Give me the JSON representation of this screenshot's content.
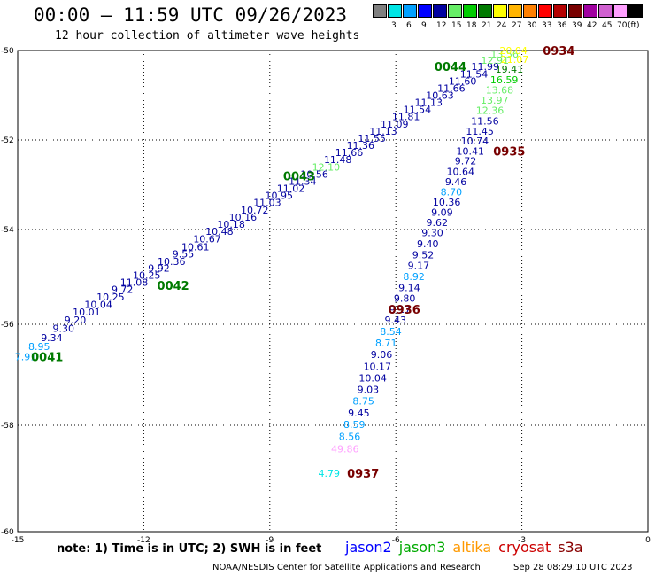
{
  "header": {
    "title": "00:00 – 11:59 UTC 09/26/2023",
    "subtitle": "12 hour collection of altimeter wave heights"
  },
  "legend": {
    "unit": "(ft)",
    "bins": [
      {
        "label": "",
        "color": "#808080"
      },
      {
        "label": "3",
        "color": "#00e5e5"
      },
      {
        "label": "6",
        "color": "#00a0ff"
      },
      {
        "label": "9",
        "color": "#0000ff"
      },
      {
        "label": "12",
        "color": "#0000a0"
      },
      {
        "label": "15",
        "color": "#66ee66"
      },
      {
        "label": "18",
        "color": "#00cc00"
      },
      {
        "label": "21",
        "color": "#007a00"
      },
      {
        "label": "24",
        "color": "#ffff00"
      },
      {
        "label": "27",
        "color": "#ffb400"
      },
      {
        "label": "30",
        "color": "#ff8000"
      },
      {
        "label": "33",
        "color": "#ff0000"
      },
      {
        "label": "36",
        "color": "#b40000"
      },
      {
        "label": "39",
        "color": "#780000"
      },
      {
        "label": "42",
        "color": "#a000a0"
      },
      {
        "label": "45",
        "color": "#d060d0"
      },
      {
        "label": "70",
        "color": "#ffa0ff"
      },
      {
        "label": "",
        "color": "#000000"
      }
    ]
  },
  "axes": {
    "x_ticks": [
      "-15",
      "-12",
      "-9",
      "-6",
      "-3",
      "0"
    ],
    "y_ticks": [
      "-50",
      "-52",
      "-54",
      "-56",
      "-58",
      "-60"
    ]
  },
  "observations": [
    {
      "text": "7.91",
      "lon": -14.81,
      "lat": -56.64,
      "color": "#00a0ff"
    },
    {
      "text": "8.95",
      "lon": -14.49,
      "lat": -56.44,
      "color": "#00a0ff"
    },
    {
      "text": "9.34",
      "lon": -14.19,
      "lat": -56.26,
      "color": "#0000a0"
    },
    {
      "text": "9.30",
      "lon": -13.91,
      "lat": -56.08,
      "color": "#0000a0"
    },
    {
      "text": "9.20",
      "lon": -13.63,
      "lat": -55.91,
      "color": "#0000a0"
    },
    {
      "text": "10.01",
      "lon": -13.36,
      "lat": -55.74,
      "color": "#0000a0"
    },
    {
      "text": "10.04",
      "lon": -13.08,
      "lat": -55.58,
      "color": "#0000a0"
    },
    {
      "text": "10.25",
      "lon": -12.79,
      "lat": -55.42,
      "color": "#0000a0"
    },
    {
      "text": "9.72",
      "lon": -12.51,
      "lat": -55.26,
      "color": "#0000a0"
    },
    {
      "text": "11.08",
      "lon": -12.23,
      "lat": -55.11,
      "color": "#0000a0"
    },
    {
      "text": "10.25",
      "lon": -11.93,
      "lat": -54.96,
      "color": "#0000a0"
    },
    {
      "text": "9.92",
      "lon": -11.64,
      "lat": -54.81,
      "color": "#0000a0"
    },
    {
      "text": "10.36",
      "lon": -11.34,
      "lat": -54.67,
      "color": "#0000a0"
    },
    {
      "text": "9.55",
      "lon": -11.06,
      "lat": -54.51,
      "color": "#0000a0"
    },
    {
      "text": "10.61",
      "lon": -10.77,
      "lat": -54.36,
      "color": "#0000a0"
    },
    {
      "text": "10.67",
      "lon": -10.49,
      "lat": -54.2,
      "color": "#0000a0"
    },
    {
      "text": "10.48",
      "lon": -10.2,
      "lat": -54.04,
      "color": "#0000a0"
    },
    {
      "text": "10.18",
      "lon": -9.92,
      "lat": -53.88,
      "color": "#0000a0"
    },
    {
      "text": "10.16",
      "lon": -9.64,
      "lat": -53.72,
      "color": "#0000a0"
    },
    {
      "text": "10.72",
      "lon": -9.36,
      "lat": -53.56,
      "color": "#0000a0"
    },
    {
      "text": "11.03",
      "lon": -9.06,
      "lat": -53.4,
      "color": "#0000a0"
    },
    {
      "text": "10.95",
      "lon": -8.78,
      "lat": -53.24,
      "color": "#0000a0"
    },
    {
      "text": "11.02",
      "lon": -8.5,
      "lat": -53.08,
      "color": "#0000a0"
    },
    {
      "text": "11.34",
      "lon": -8.22,
      "lat": -52.92,
      "color": "#0000a0"
    },
    {
      "text": "10.56",
      "lon": -7.94,
      "lat": -52.76,
      "color": "#0000a0"
    },
    {
      "text": "12.10",
      "lon": -7.66,
      "lat": -52.6,
      "color": "#66ee66"
    },
    {
      "text": "11.48",
      "lon": -7.38,
      "lat": -52.44,
      "color": "#0000a0"
    },
    {
      "text": "11.66",
      "lon": -7.11,
      "lat": -52.28,
      "color": "#0000a0"
    },
    {
      "text": "11.36",
      "lon": -6.84,
      "lat": -52.12,
      "color": "#0000a0"
    },
    {
      "text": "11.55",
      "lon": -6.57,
      "lat": -51.96,
      "color": "#0000a0"
    },
    {
      "text": "11.13",
      "lon": -6.3,
      "lat": -51.8,
      "color": "#0000a0"
    },
    {
      "text": "11.09",
      "lon": -6.03,
      "lat": -51.64,
      "color": "#0000a0"
    },
    {
      "text": "11.81",
      "lon": -5.76,
      "lat": -51.48,
      "color": "#0000a0"
    },
    {
      "text": "11.54",
      "lon": -5.49,
      "lat": -51.32,
      "color": "#0000a0"
    },
    {
      "text": "11.13",
      "lon": -5.22,
      "lat": -51.16,
      "color": "#0000a0"
    },
    {
      "text": "10.63",
      "lon": -4.95,
      "lat": -51.0,
      "color": "#0000a0"
    },
    {
      "text": "11.66",
      "lon": -4.68,
      "lat": -50.84,
      "color": "#0000a0"
    },
    {
      "text": "11.60",
      "lon": -4.41,
      "lat": -50.68,
      "color": "#0000a0"
    },
    {
      "text": "11.54",
      "lon": -4.14,
      "lat": -50.52,
      "color": "#0000a0"
    },
    {
      "text": "11.99",
      "lon": -3.87,
      "lat": -50.36,
      "color": "#0000a0"
    },
    {
      "text": "12.91",
      "lon": -3.64,
      "lat": -50.22,
      "color": "#66ee66"
    },
    {
      "text": "13.56",
      "lon": -3.41,
      "lat": -50.08,
      "color": "#66ee66"
    },
    {
      "text": "20.04",
      "lon": -3.2,
      "lat": -49.97,
      "color": "#ffff00"
    },
    {
      "text": "21.07",
      "lon": -3.17,
      "lat": -50.2,
      "color": "#ffff00"
    },
    {
      "text": "19.41",
      "lon": -3.3,
      "lat": -50.42,
      "color": "#007a00"
    },
    {
      "text": "16.59",
      "lon": -3.42,
      "lat": -50.65,
      "color": "#00cc00"
    },
    {
      "text": "13.68",
      "lon": -3.53,
      "lat": -50.88,
      "color": "#66ee66"
    },
    {
      "text": "13.97",
      "lon": -3.65,
      "lat": -51.11,
      "color": "#66ee66"
    },
    {
      "text": "12.36",
      "lon": -3.76,
      "lat": -51.34,
      "color": "#66ee66"
    },
    {
      "text": "11.56",
      "lon": -3.88,
      "lat": -51.57,
      "color": "#0000a0"
    },
    {
      "text": "11.45",
      "lon": -4.0,
      "lat": -51.8,
      "color": "#0000a0"
    },
    {
      "text": "10.74",
      "lon": -4.12,
      "lat": -52.02,
      "color": "#0000a0"
    },
    {
      "text": "10.41",
      "lon": -4.23,
      "lat": -52.25,
      "color": "#0000a0"
    },
    {
      "text": "9.72",
      "lon": -4.34,
      "lat": -52.47,
      "color": "#0000a0"
    },
    {
      "text": "10.64",
      "lon": -4.46,
      "lat": -52.7,
      "color": "#0000a0"
    },
    {
      "text": "9.46",
      "lon": -4.57,
      "lat": -52.93,
      "color": "#0000a0"
    },
    {
      "text": "8.70",
      "lon": -4.68,
      "lat": -53.16,
      "color": "#00a0ff"
    },
    {
      "text": "10.36",
      "lon": -4.79,
      "lat": -53.39,
      "color": "#0000a0"
    },
    {
      "text": "9.09",
      "lon": -4.9,
      "lat": -53.61,
      "color": "#0000a0"
    },
    {
      "text": "9.62",
      "lon": -5.02,
      "lat": -53.84,
      "color": "#0000a0"
    },
    {
      "text": "9.30",
      "lon": -5.13,
      "lat": -54.07,
      "color": "#0000a0"
    },
    {
      "text": "9.40",
      "lon": -5.24,
      "lat": -54.3,
      "color": "#0000a0"
    },
    {
      "text": "9.52",
      "lon": -5.35,
      "lat": -54.53,
      "color": "#0000a0"
    },
    {
      "text": "9.17",
      "lon": -5.46,
      "lat": -54.76,
      "color": "#0000a0"
    },
    {
      "text": "8.92",
      "lon": -5.57,
      "lat": -54.99,
      "color": "#00a0ff"
    },
    {
      "text": "9.14",
      "lon": -5.68,
      "lat": -55.22,
      "color": "#0000a0"
    },
    {
      "text": "9.80",
      "lon": -5.79,
      "lat": -55.45,
      "color": "#0000a0"
    },
    {
      "text": "9.17",
      "lon": -5.9,
      "lat": -55.68,
      "color": "#0000a0"
    },
    {
      "text": "9.43",
      "lon": -6.01,
      "lat": -55.91,
      "color": "#0000a0"
    },
    {
      "text": "8.54",
      "lon": -6.12,
      "lat": -56.14,
      "color": "#00a0ff"
    },
    {
      "text": "8.71",
      "lon": -6.23,
      "lat": -56.37,
      "color": "#00a0ff"
    },
    {
      "text": "9.06",
      "lon": -6.34,
      "lat": -56.6,
      "color": "#0000a0"
    },
    {
      "text": "10.17",
      "lon": -6.44,
      "lat": -56.83,
      "color": "#0000a0"
    },
    {
      "text": "10.04",
      "lon": -6.55,
      "lat": -57.06,
      "color": "#0000a0"
    },
    {
      "text": "9.03",
      "lon": -6.66,
      "lat": -57.29,
      "color": "#0000a0"
    },
    {
      "text": "8.75",
      "lon": -6.77,
      "lat": -57.52,
      "color": "#00a0ff"
    },
    {
      "text": "9.45",
      "lon": -6.88,
      "lat": -57.75,
      "color": "#0000a0"
    },
    {
      "text": "8.59",
      "lon": -6.99,
      "lat": -57.98,
      "color": "#00a0ff"
    },
    {
      "text": "8.56",
      "lon": -7.1,
      "lat": -58.21,
      "color": "#00a0ff"
    },
    {
      "text": "49.86",
      "lon": -7.21,
      "lat": -58.44,
      "color": "#ffa0ff"
    },
    {
      "text": "4.79",
      "lon": -7.59,
      "lat": -58.9,
      "color": "#00e5e5"
    }
  ],
  "pass_labels": [
    {
      "text": "0041",
      "lon": -14.3,
      "lat": -56.64,
      "color": "#007a00"
    },
    {
      "text": "0042",
      "lon": -11.3,
      "lat": -55.18,
      "color": "#007a00"
    },
    {
      "text": "0043",
      "lon": -8.3,
      "lat": -52.8,
      "color": "#007a00"
    },
    {
      "text": "0044",
      "lon": -4.7,
      "lat": -50.36,
      "color": "#007a00"
    },
    {
      "text": "0934",
      "lon": -2.12,
      "lat": -49.97,
      "color": "#780000"
    },
    {
      "text": "0935",
      "lon": -3.3,
      "lat": -52.25,
      "color": "#780000"
    },
    {
      "text": "0936",
      "lon": -5.8,
      "lat": -55.68,
      "color": "#780000"
    },
    {
      "text": "0937",
      "lon": -6.78,
      "lat": -58.9,
      "color": "#780000"
    }
  ],
  "footer": {
    "note": "note:  1) Time is in UTC;  2) SWH is in feet",
    "satellites": [
      {
        "name": "jason2",
        "color": "#0000ff"
      },
      {
        "name": "jason3",
        "color": "#00aa00"
      },
      {
        "name": "altika",
        "color": "#ff9900"
      },
      {
        "name": "cryosat",
        "color": "#cc0000"
      },
      {
        "name": "s3a",
        "color": "#880000"
      }
    ],
    "credit": "NOAA/NESDIS Center for Satellite Applications and Research",
    "timestamp": "Sep 28 08:29:10 UTC 2023"
  }
}
